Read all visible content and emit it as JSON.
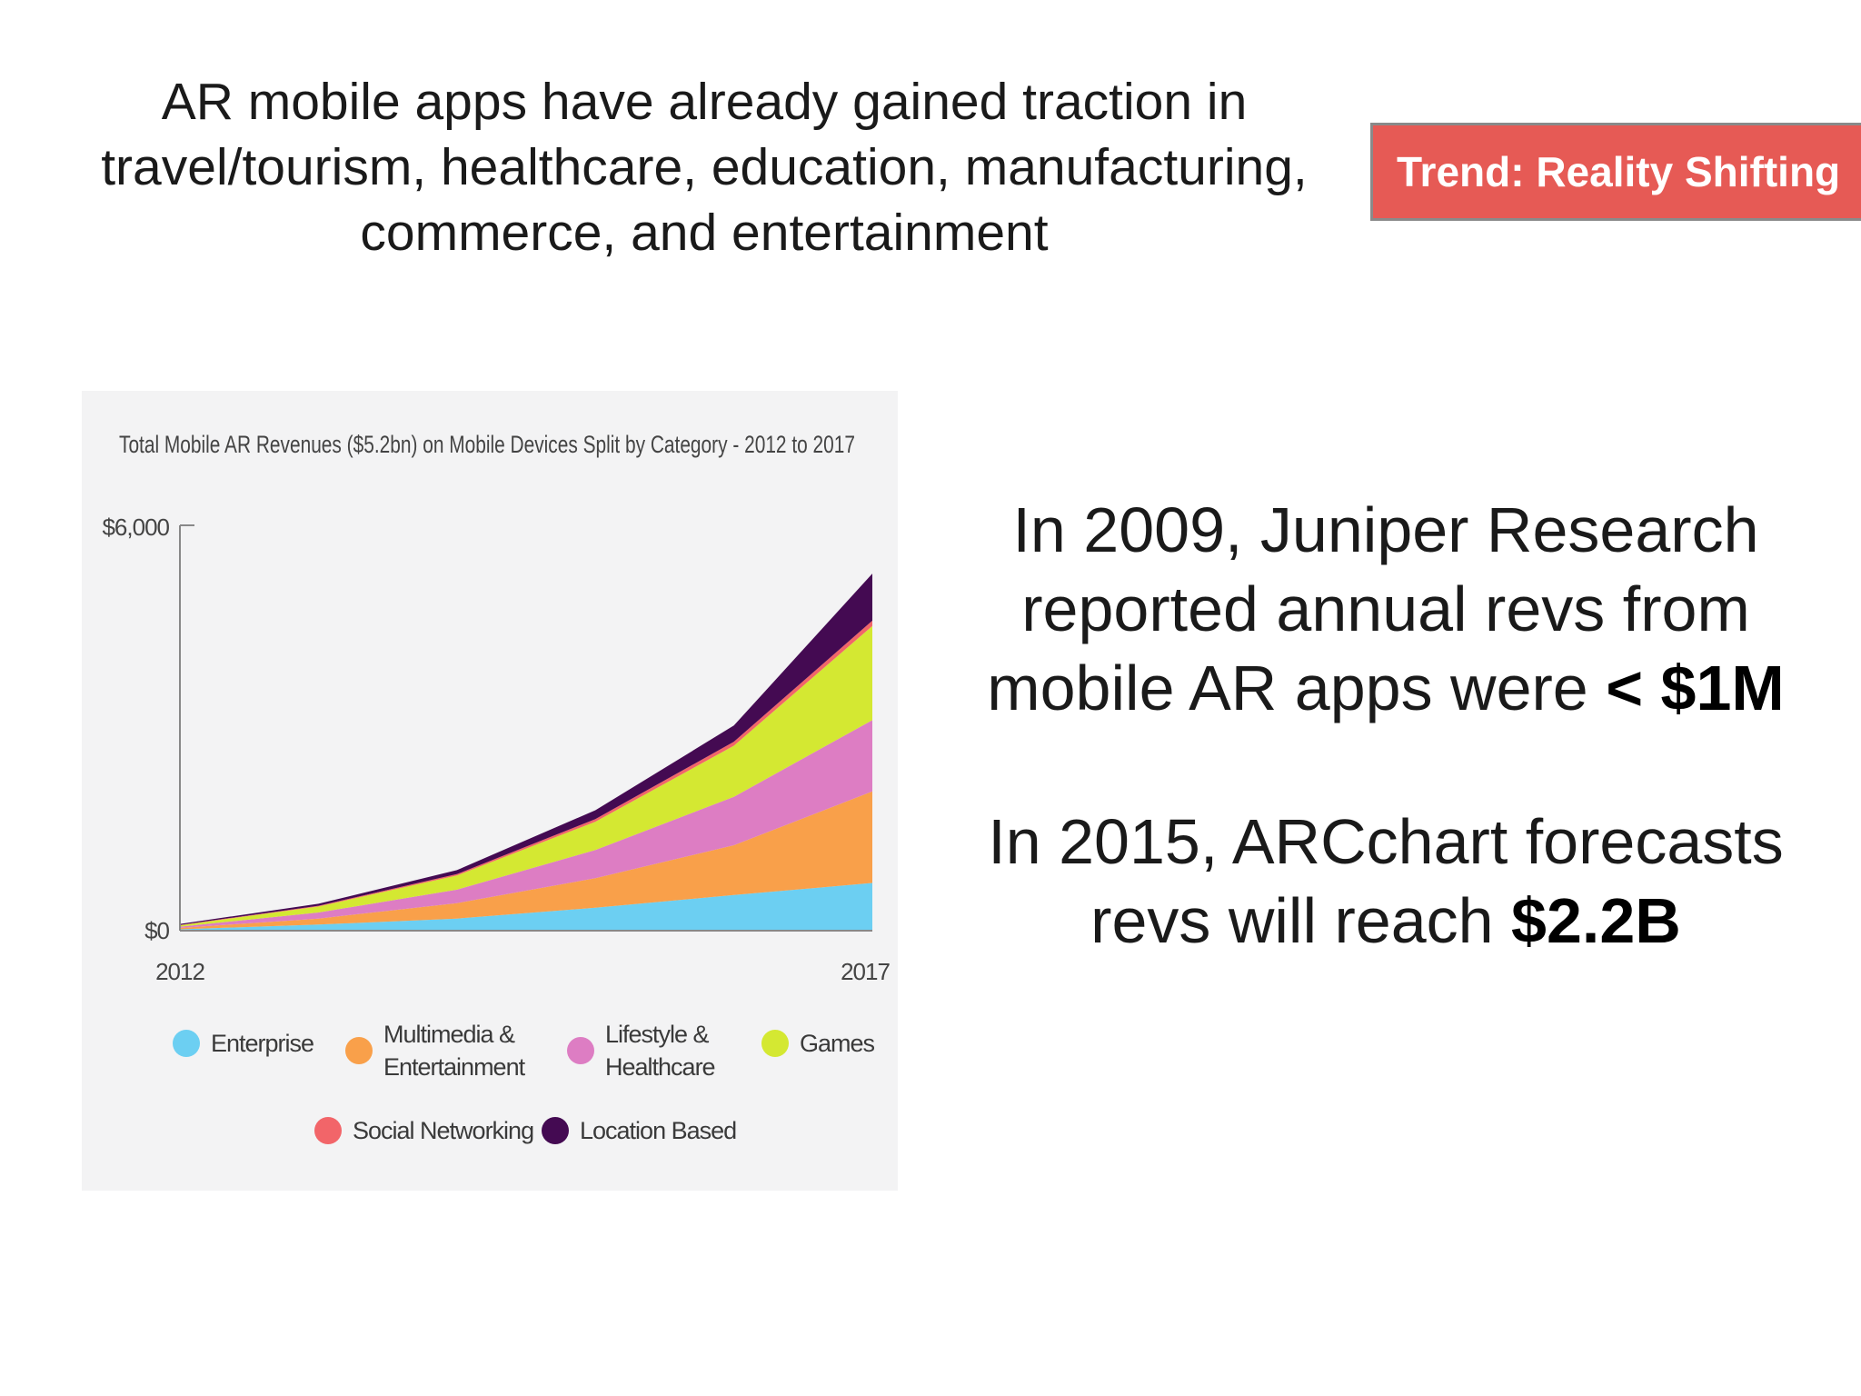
{
  "headline": {
    "line1": "AR mobile apps have already gained traction in",
    "line2": "travel/tourism, healthcare, education, manufacturing,",
    "line3": "commerce, and entertainment"
  },
  "trend_badge": "Trend: Reality Shifting",
  "stats": {
    "p1_line1": "In 2009, Juniper Research",
    "p1_line2": "reported annual revs from",
    "p1_line3_plain": "mobile AR apps were ",
    "p1_line3_bold": "< $1M",
    "p2_line1": "In 2015, ARCchart forecasts",
    "p2_line2_plain": "revs will reach ",
    "p2_line2_bold": "$2.2B"
  },
  "chart_data": {
    "type": "area",
    "stacked": true,
    "title": "Total Mobile AR Revenues ($5.2bn) on Mobile Devices Split by Category - 2012 to 2017",
    "x": [
      2012,
      2013,
      2014,
      2015,
      2016,
      2017
    ],
    "x_tick_labels": [
      "2012",
      "2017"
    ],
    "y_tick_labels": [
      "$6,000",
      "$0"
    ],
    "ylim": [
      0,
      6000
    ],
    "grid": false,
    "legend_position": "bottom",
    "series": [
      {
        "name": "Enterprise",
        "color": "#6ccff2",
        "values": [
          20,
          90,
          180,
          340,
          530,
          710
        ]
      },
      {
        "name": "Multimedia &\nEntertainment",
        "color": "#f9a04a",
        "values": [
          20,
          90,
          230,
          440,
          740,
          1360
        ]
      },
      {
        "name": "Lifestyle &\nHealthcare",
        "color": "#dd7dc3",
        "values": [
          20,
          90,
          200,
          420,
          720,
          1060
        ]
      },
      {
        "name": "Games",
        "color": "#d4e832",
        "values": [
          20,
          90,
          210,
          420,
          760,
          1400
        ]
      },
      {
        "name": "Social Networking",
        "color": "#f26569",
        "values": [
          5,
          10,
          20,
          40,
          60,
          80
        ]
      },
      {
        "name": "Location Based",
        "color": "#440a52",
        "values": [
          15,
          30,
          60,
          130,
          240,
          700
        ]
      }
    ]
  }
}
